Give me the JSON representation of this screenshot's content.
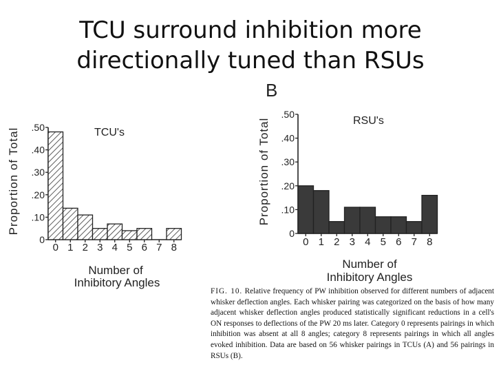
{
  "slide": {
    "title_line1": "TCU surround inhibition more",
    "title_line2": "directionally tuned than RSUs"
  },
  "chart_data": [
    {
      "type": "bar",
      "panel_letter": "",
      "title": "TCU's",
      "xlabel_line1": "Number of",
      "xlabel_line2": "Inhibitory Angles",
      "ylabel": "Proportion of Total",
      "categories": [
        "0",
        "1",
        "2",
        "3",
        "4",
        "5",
        "6",
        "7",
        "8"
      ],
      "values": [
        0.48,
        0.14,
        0.11,
        0.05,
        0.07,
        0.04,
        0.05,
        0.0,
        0.05
      ],
      "yticks": [
        "0",
        ".10",
        ".20",
        ".30",
        ".40",
        ".50"
      ],
      "ylim": [
        0,
        0.5
      ],
      "fill": "hatched",
      "grid": false
    },
    {
      "type": "bar",
      "panel_letter": "B",
      "title": "RSU's",
      "xlabel_line1": "Number of",
      "xlabel_line2": "Inhibitory Angles",
      "ylabel": "Proportion of Total",
      "categories": [
        "0",
        "1",
        "2",
        "3",
        "4",
        "5",
        "6",
        "7",
        "8"
      ],
      "values": [
        0.2,
        0.18,
        0.05,
        0.11,
        0.11,
        0.07,
        0.07,
        0.05,
        0.16
      ],
      "yticks": [
        "0",
        ".10",
        ".20",
        ".30",
        ".40",
        ".50"
      ],
      "ylim": [
        0,
        0.5
      ],
      "fill": "#3a3a3a",
      "grid": false
    }
  ],
  "caption": {
    "label": "FIG. 10.",
    "text": "Relative frequency of PW inhibition observed for different numbers of adjacent whisker deflection angles. Each whisker pairing was categorized on the basis of how many adjacent whisker deflection angles produced statistically significant reductions in a cell's ON responses to deflections of the PW 20 ms later. Category 0 represents pairings in which inhibition was absent at all 8 angles; category 8 represents pairings in which all angles evoked inhibition. Data are based on 56 whisker pairings in TCUs (A) and 56 pairings in RSUs (B)."
  }
}
